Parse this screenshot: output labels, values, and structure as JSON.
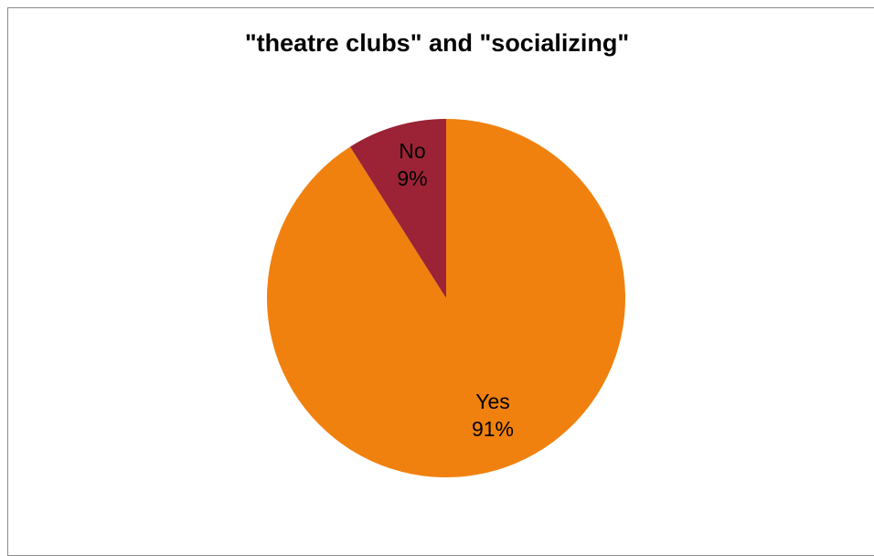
{
  "chart_data": {
    "type": "pie",
    "title": "\"theatre clubs\" and \"socializing\"",
    "slices": [
      {
        "label": "Yes",
        "value": 91,
        "value_label": "91%",
        "color": "#f0810f"
      },
      {
        "label": "No",
        "value": 9,
        "value_label": "9%",
        "color": "#9b2335"
      }
    ],
    "start_angle": "12 o'clock",
    "direction": "clockwise",
    "legend": "none",
    "data_labels": "category and percentage on slices"
  }
}
